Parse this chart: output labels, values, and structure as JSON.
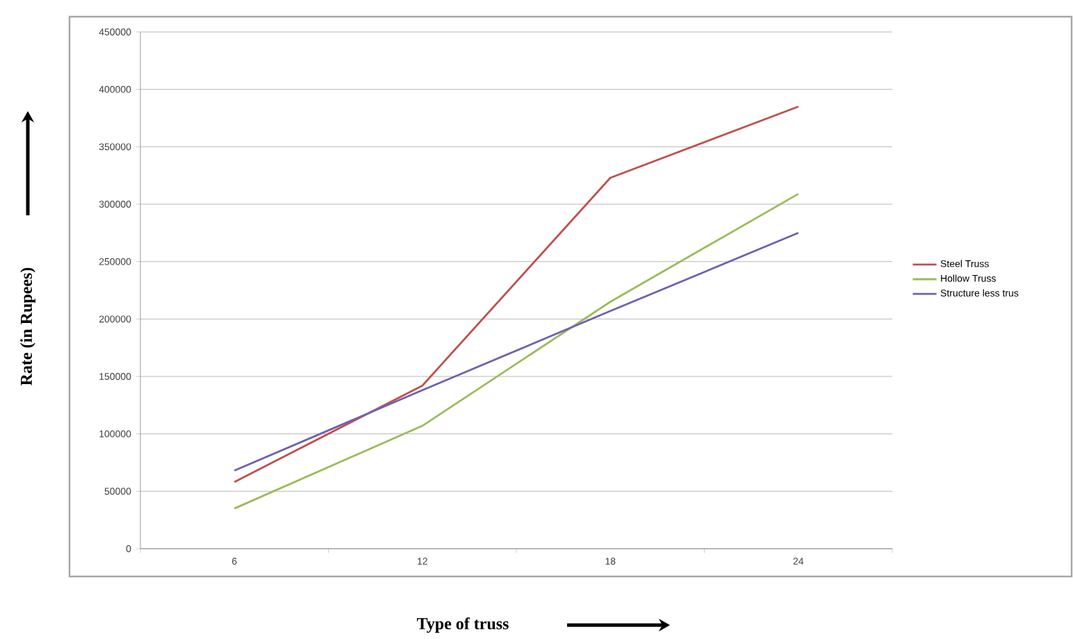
{
  "chart_data": {
    "type": "line",
    "xlabel": "Type of truss",
    "ylabel": "Rate (in Rupees)",
    "categories": [
      "6",
      "12",
      "18",
      "24"
    ],
    "series": [
      {
        "name": "Steel Truss",
        "color": "#c0504d",
        "values": [
          58000,
          142000,
          323000,
          385000
        ]
      },
      {
        "name": "Hollow Truss",
        "color": "#9bbb59",
        "values": [
          35000,
          107000,
          215000,
          309000
        ]
      },
      {
        "name": "Structure less trus",
        "color": "#7060b0",
        "values": [
          68000,
          138000,
          207000,
          275000
        ]
      }
    ],
    "ylim": [
      0,
      450000
    ],
    "yticks": [
      0,
      50000,
      100000,
      150000,
      200000,
      250000,
      300000,
      350000,
      400000,
      450000
    ],
    "grid": "y",
    "legend": "right",
    "marker": "none",
    "line_style": "solid"
  }
}
